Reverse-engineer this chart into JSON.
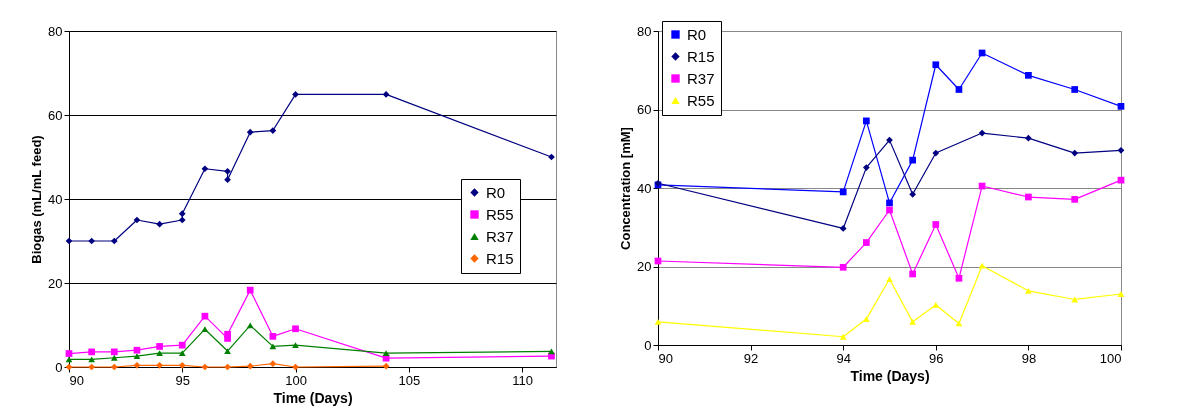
{
  "chart_data": [
    {
      "type": "line",
      "xlabel": "Time (Days)",
      "ylabel": "Biogas (mL/mL feed)",
      "xlim": [
        90,
        111.5
      ],
      "xticks": [
        90,
        95,
        100,
        105,
        110
      ],
      "ylim": [
        0,
        80
      ],
      "yticks": [
        0,
        20,
        40,
        60,
        80
      ],
      "grid": "y",
      "legend": "right",
      "series": [
        {
          "name": "R0",
          "color": "#000080",
          "marker": "diamond",
          "x": [
            90,
            91,
            92,
            93,
            94,
            95,
            95,
            96,
            97,
            97,
            98,
            99,
            100,
            104,
            111.3
          ],
          "values": [
            30,
            30,
            30,
            35,
            34,
            35,
            36.5,
            47.2,
            46.6,
            44.6,
            55.9,
            56.3,
            64.9,
            64.9,
            50
          ]
        },
        {
          "name": "R55",
          "color": "#ff00ff",
          "marker": "square",
          "x": [
            90,
            91,
            92,
            93,
            94,
            95,
            96,
            97,
            97,
            98,
            99,
            100,
            104,
            111.3
          ],
          "values": [
            3.2,
            3.6,
            3.6,
            4,
            4.9,
            5.2,
            12.1,
            6.8,
            7.8,
            18.3,
            7.3,
            9.1,
            2.1,
            2.6
          ]
        },
        {
          "name": "R37",
          "color": "#008000",
          "marker": "triangle",
          "x": [
            90,
            91,
            92,
            93,
            94,
            95,
            96,
            97,
            98,
            99,
            100,
            104,
            111.3
          ],
          "values": [
            1.8,
            1.8,
            2.2,
            2.6,
            3.3,
            3.3,
            9,
            3.8,
            9.9,
            4.9,
            5.2,
            3.3,
            3.7
          ]
        },
        {
          "name": "R15",
          "color": "#ff6600",
          "marker": "diamond",
          "x": [
            90,
            91,
            92,
            93,
            94,
            95,
            96,
            97,
            98,
            99,
            100,
            104
          ],
          "values": [
            0,
            0,
            0,
            0.4,
            0.4,
            0.4,
            0,
            0,
            0.2,
            0.8,
            0,
            0.2
          ]
        }
      ]
    },
    {
      "type": "line",
      "xlabel": "Time (Days)",
      "ylabel": "Concentration [mM]",
      "xlim": [
        90,
        100
      ],
      "xticks": [
        90,
        92,
        94,
        96,
        98,
        100
      ],
      "ylim": [
        0,
        80
      ],
      "yticks": [
        0,
        20,
        40,
        60,
        80
      ],
      "grid": "y",
      "legend": "top left",
      "series": [
        {
          "name": "R0",
          "color": "#0000ff",
          "marker": "square",
          "x": [
            90,
            94,
            94.5,
            95,
            95.5,
            96,
            96.5,
            97,
            98,
            99,
            100
          ],
          "values": [
            40.8,
            39,
            57.1,
            36.2,
            47.1,
            71.4,
            65.1,
            74.4,
            68.7,
            65.1,
            60.8
          ]
        },
        {
          "name": "R15",
          "color": "#000080",
          "marker": "diamond",
          "x": [
            90,
            94,
            94.5,
            95,
            95.5,
            96,
            97,
            98,
            99,
            100
          ],
          "values": [
            41.2,
            29.7,
            45.2,
            52.2,
            38.4,
            48.9,
            54,
            52.7,
            48.9,
            49.6
          ]
        },
        {
          "name": "R37",
          "color": "#ff00ff",
          "marker": "square",
          "x": [
            90,
            94,
            94.5,
            95,
            95.5,
            96,
            96.5,
            97,
            98,
            99,
            100
          ],
          "values": [
            21.4,
            19.8,
            26.1,
            34.4,
            18.1,
            30.7,
            17,
            40.5,
            37.7,
            37.1,
            42
          ]
        },
        {
          "name": "R55",
          "color": "#ffff00",
          "marker": "triangle",
          "x": [
            90,
            94,
            94.5,
            95,
            95.5,
            96,
            96.5,
            97,
            98,
            99,
            100
          ],
          "values": [
            5.9,
            2.1,
            6.6,
            16.8,
            5.9,
            10.2,
            5.5,
            20.2,
            13.8,
            11.6,
            13
          ]
        }
      ]
    }
  ]
}
